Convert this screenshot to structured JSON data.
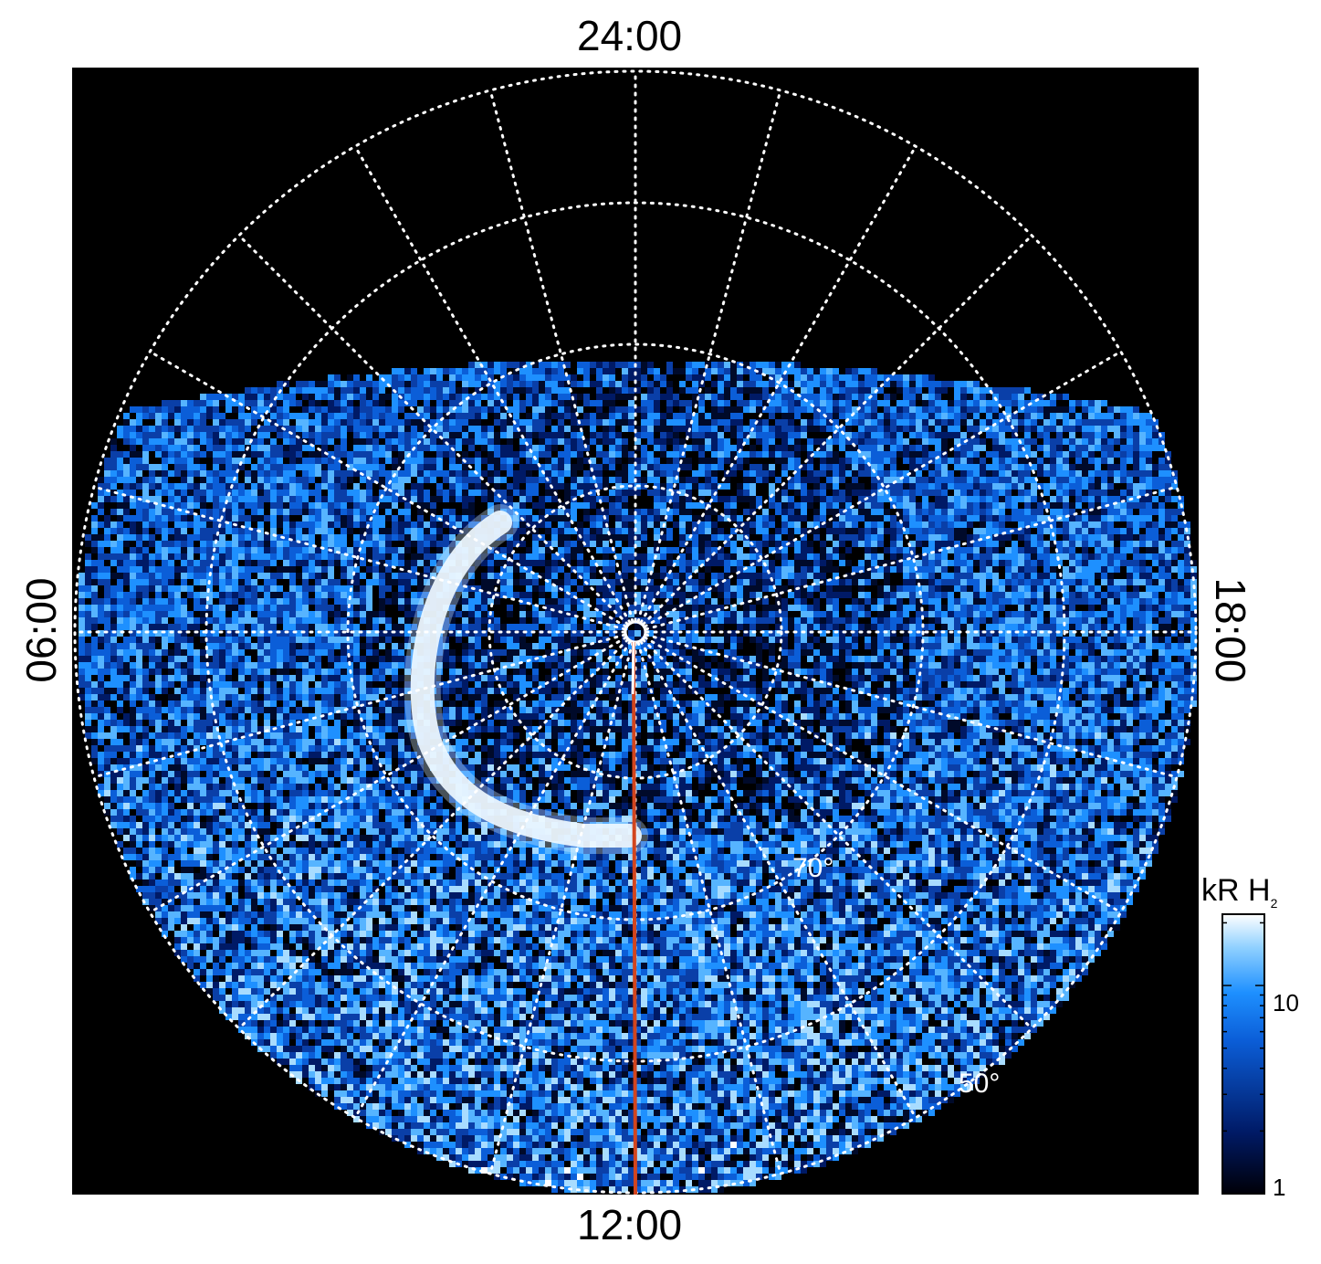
{
  "panel": {
    "local_time_labels": {
      "top": "24:00",
      "bottom": "12:00",
      "left": "06:00",
      "right": "18:00"
    },
    "latitude_labels": [
      "70°",
      "50°"
    ],
    "background_color": "#000000",
    "grid_color": "#ffffff",
    "meridian_line_color": "#d2451e"
  },
  "colorbar": {
    "title_main": "kR H",
    "title_sub": "2",
    "tick_labels": [
      "10",
      "1"
    ],
    "scale": "log",
    "colors": [
      "#000008",
      "#001a66",
      "#0b5ed8",
      "#1e90ff",
      "#8fd0ff",
      "#ffffff"
    ]
  }
}
